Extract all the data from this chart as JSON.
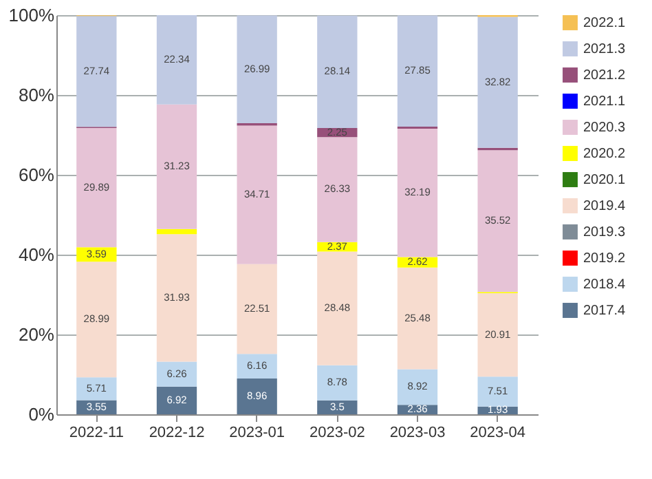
{
  "chart_data": {
    "type": "bar",
    "stacked": true,
    "categories": [
      "2022-11",
      "2022-12",
      "2023-01",
      "2023-02",
      "2023-03",
      "2023-04"
    ],
    "ylim": [
      0,
      100
    ],
    "yticks": [
      {
        "value": 0,
        "label": "0%"
      },
      {
        "value": 20,
        "label": "20%"
      },
      {
        "value": 40,
        "label": "40%"
      },
      {
        "value": 60,
        "label": "60%"
      },
      {
        "value": 80,
        "label": "80%"
      },
      {
        "value": 100,
        "label": "100%"
      }
    ],
    "grid": "y",
    "legend": "right",
    "series": [
      {
        "name": "2017.4",
        "color": "#5a7591",
        "values": [
          3.55,
          6.92,
          8.96,
          3.5,
          2.36,
          1.93
        ],
        "value_labels": [
          "3.55",
          "6.92",
          "8.96",
          "3.5",
          "2.36",
          "1.93"
        ]
      },
      {
        "name": "2018.4",
        "color": "#bdd7ee",
        "values": [
          5.71,
          6.26,
          6.16,
          8.78,
          8.92,
          7.51
        ],
        "value_labels": [
          "5.71",
          "6.26",
          "6.16",
          "8.78",
          "8.92",
          "7.51"
        ]
      },
      {
        "name": "2019.2",
        "color": "#ff0000",
        "values": [
          null,
          null,
          null,
          null,
          null,
          null
        ]
      },
      {
        "name": "2019.3",
        "color": "#7f8c97",
        "values": [
          null,
          null,
          null,
          null,
          null,
          null
        ]
      },
      {
        "name": "2019.4",
        "color": "#f7dccf",
        "values": [
          28.99,
          31.93,
          22.51,
          28.48,
          25.48,
          20.91
        ],
        "value_labels": [
          "28.99",
          "31.93",
          "22.51",
          "28.48",
          "25.48",
          "20.91"
        ]
      },
      {
        "name": "2020.1",
        "color": "#2e7d12",
        "values": [
          null,
          null,
          null,
          null,
          null,
          null
        ]
      },
      {
        "name": "2020.2",
        "color": "#ffff00",
        "values": [
          3.59,
          1.3,
          null,
          2.37,
          2.62,
          0.3
        ],
        "value_labels": [
          "3.59",
          null,
          null,
          "2.37",
          "2.62",
          null
        ]
      },
      {
        "name": "2020.3",
        "color": "#e6c3d6",
        "values": [
          29.89,
          31.23,
          34.71,
          26.33,
          32.19,
          35.52
        ],
        "value_labels": [
          "29.89",
          "31.23",
          "34.71",
          "26.33",
          "32.19",
          "35.52"
        ]
      },
      {
        "name": "2021.1",
        "color": "#0000ff",
        "values": [
          null,
          null,
          null,
          null,
          null,
          null
        ]
      },
      {
        "name": "2021.2",
        "color": "#97507a",
        "values": [
          0.3,
          null,
          0.6,
          2.25,
          0.5,
          0.6
        ],
        "value_labels": [
          null,
          null,
          null,
          "2.25",
          null,
          null
        ]
      },
      {
        "name": "2021.3",
        "color": "#c0cae3",
        "values": [
          27.74,
          22.34,
          26.99,
          28.14,
          27.85,
          32.82
        ],
        "value_labels": [
          "27.74",
          "22.34",
          "26.99",
          "28.14",
          "27.85",
          "32.82"
        ]
      },
      {
        "name": "2022.1",
        "color": "#f5c054",
        "values": [
          0.2,
          null,
          null,
          null,
          null,
          0.4
        ]
      }
    ]
  }
}
